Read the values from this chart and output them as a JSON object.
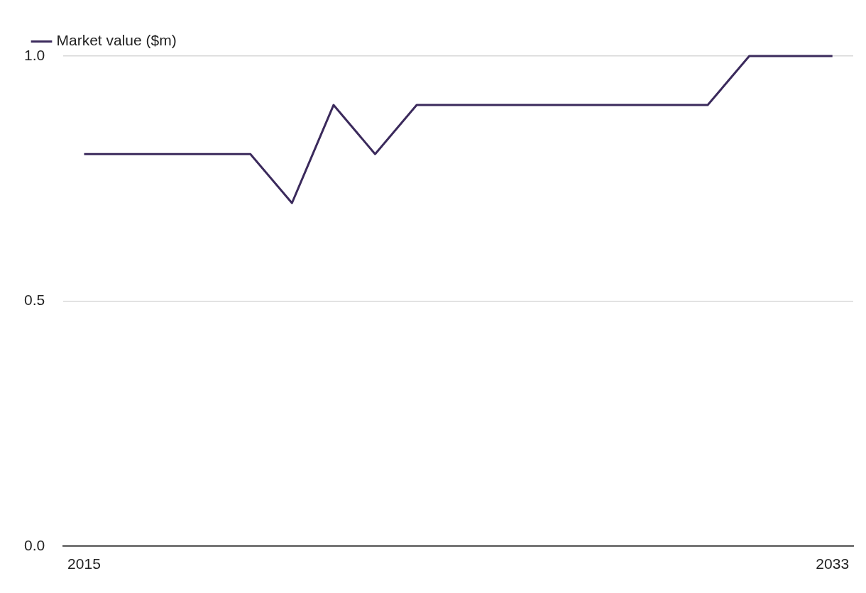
{
  "chart_data": {
    "type": "line",
    "categories": [
      "2015",
      null,
      null,
      null,
      null,
      null,
      null,
      null,
      null,
      null,
      null,
      null,
      null,
      null,
      null,
      null,
      null,
      null,
      "2033"
    ],
    "series": [
      {
        "name": "Market value ($m)",
        "color": "#3b2a5c",
        "values": [
          0.8,
          0.8,
          0.8,
          0.8,
          0.8,
          0.7,
          0.9,
          0.8,
          0.9,
          0.9,
          0.9,
          0.9,
          0.9,
          0.9,
          0.9,
          0.9,
          1.0,
          1.0,
          1.0
        ]
      }
    ],
    "ylim": [
      0,
      1
    ],
    "yticks": [
      {
        "value": 0,
        "label": "0.0"
      },
      {
        "value": 0.5,
        "label": "0.5"
      },
      {
        "value": 1,
        "label": "1.0"
      }
    ],
    "grid": "y",
    "legend": "top left",
    "marker": "none",
    "line_style": "solid"
  }
}
